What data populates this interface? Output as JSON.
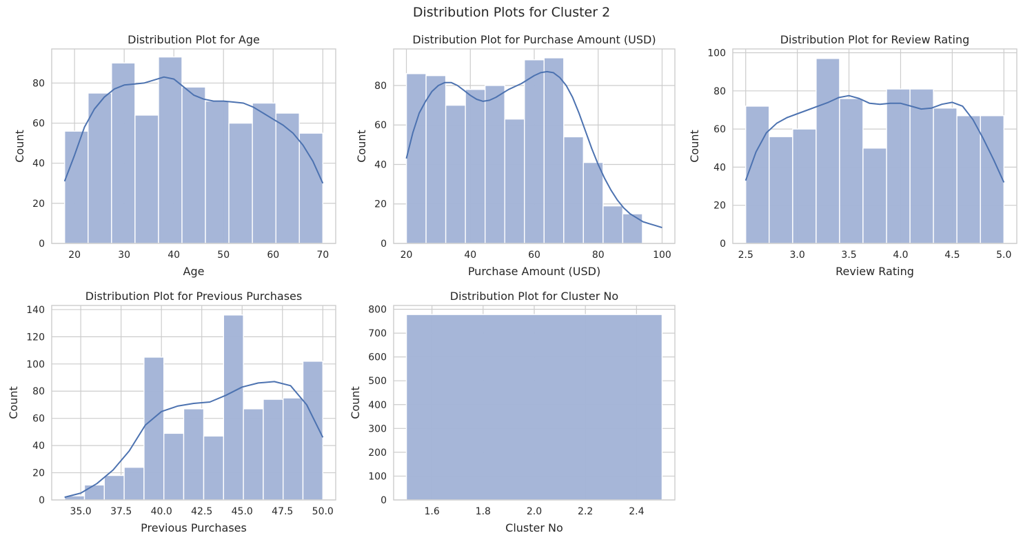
{
  "suptitle": "Distribution Plots for Cluster 2",
  "colors": {
    "bar_fill": "#a3b4d7",
    "bar_edge": "#ffffff",
    "kde_line": "#4c72b0",
    "grid": "#cccccc",
    "spine": "#cccccc",
    "background": "#ffffff"
  },
  "chart_data": [
    {
      "type": "bar",
      "title": "Distribution Plot for Age",
      "xlabel": "Age",
      "ylabel": "Count",
      "xlim": [
        15.4,
        72.6
      ],
      "ylim": [
        0,
        97
      ],
      "xticks": [
        20,
        30,
        40,
        50,
        60,
        70
      ],
      "yticks": [
        0,
        20,
        40,
        60,
        80
      ],
      "bin_edges": [
        18,
        22.73,
        27.45,
        32.18,
        36.91,
        41.64,
        46.36,
        51.09,
        55.82,
        60.55,
        65.27,
        70
      ],
      "counts": [
        56,
        75,
        90,
        64,
        93,
        78,
        71,
        60,
        70,
        65,
        55
      ],
      "kde": {
        "x": [
          18,
          20,
          22,
          24,
          26,
          28,
          30,
          32,
          34,
          36,
          38,
          40,
          42,
          44,
          46,
          48,
          50,
          52,
          54,
          56,
          58,
          60,
          62,
          64,
          66,
          68,
          70
        ],
        "y": [
          31,
          44,
          58,
          67,
          73,
          77,
          79,
          79.5,
          80,
          81.5,
          83,
          82,
          78,
          74,
          72,
          71,
          71,
          70.5,
          70,
          68,
          65,
          62,
          59,
          55,
          49,
          41,
          30
        ]
      }
    },
    {
      "type": "bar",
      "title": "Distribution Plot for Purchase Amount (USD)",
      "xlabel": "Purchase Amount (USD)",
      "ylabel": "Count",
      "xlim": [
        16,
        104
      ],
      "ylim": [
        0,
        98.5
      ],
      "xticks": [
        20,
        40,
        60,
        80,
        100
      ],
      "yticks": [
        0,
        20,
        40,
        60,
        80
      ],
      "bin_edges": [
        20,
        26.15,
        32.31,
        38.46,
        44.62,
        50.77,
        56.92,
        63.08,
        69.23,
        75.38,
        81.54,
        87.69,
        93.85,
        100
      ],
      "counts": [
        86,
        85,
        70,
        78,
        80,
        63,
        93,
        94,
        54,
        41,
        19,
        15,
        0
      ],
      "kde": {
        "x": [
          20,
          22,
          24,
          26,
          28,
          30,
          32,
          34,
          36,
          38,
          40,
          42,
          44,
          46,
          48,
          50,
          52,
          54,
          56,
          58,
          60,
          62,
          64,
          66,
          68,
          70,
          72,
          74,
          76,
          78,
          80,
          82,
          84,
          86,
          88,
          90,
          92,
          94,
          96,
          98,
          100
        ],
        "y": [
          43,
          56,
          66,
          72,
          77,
          80,
          81.5,
          81.5,
          80,
          77.5,
          75,
          73,
          72,
          72.5,
          74,
          76,
          78,
          79.5,
          81,
          83,
          85,
          86.5,
          87,
          86.5,
          84,
          80,
          74,
          66,
          57,
          48,
          40,
          33,
          27,
          22,
          18,
          15,
          13,
          11,
          10,
          9,
          8
        ]
      }
    },
    {
      "type": "bar",
      "title": "Distribution Plot for Review Rating",
      "xlabel": "Review Rating",
      "ylabel": "Count",
      "xlim": [
        2.375,
        5.125
      ],
      "ylim": [
        0,
        102
      ],
      "xticks": [
        2.5,
        3.0,
        3.5,
        4.0,
        4.5,
        5.0
      ],
      "xtick_labels": [
        "2.5",
        "3.0",
        "3.5",
        "4.0",
        "4.5",
        "5.0"
      ],
      "yticks": [
        0,
        20,
        40,
        60,
        80,
        100
      ],
      "bin_edges": [
        2.5,
        2.727,
        2.955,
        3.182,
        3.409,
        3.636,
        3.864,
        4.091,
        4.318,
        4.545,
        4.773,
        5.0
      ],
      "counts": [
        72,
        56,
        60,
        97,
        76,
        50,
        81,
        81,
        71,
        67,
        67
      ],
      "kde": {
        "x": [
          2.5,
          2.6,
          2.7,
          2.8,
          2.9,
          3.0,
          3.1,
          3.2,
          3.3,
          3.4,
          3.5,
          3.6,
          3.7,
          3.8,
          3.9,
          4.0,
          4.1,
          4.2,
          4.3,
          4.4,
          4.5,
          4.6,
          4.7,
          4.8,
          4.9,
          5.0
        ],
        "y": [
          33,
          48,
          58,
          63,
          66,
          68,
          70,
          72,
          74,
          76.5,
          77.5,
          76,
          73.5,
          73,
          73.5,
          73.5,
          72,
          70.5,
          71,
          73,
          74,
          72,
          65,
          55,
          44,
          32
        ]
      }
    },
    {
      "type": "bar",
      "title": "Distribution Plot for Previous Purchases",
      "xlabel": "Previous Purchases",
      "ylabel": "Count",
      "xlim": [
        33.2,
        50.8
      ],
      "ylim": [
        0,
        143
      ],
      "xticks": [
        35.0,
        37.5,
        40.0,
        42.5,
        45.0,
        47.5,
        50.0
      ],
      "xtick_labels": [
        "35.0",
        "37.5",
        "40.0",
        "42.5",
        "45.0",
        "47.5",
        "50.0"
      ],
      "yticks": [
        0,
        20,
        40,
        60,
        80,
        100,
        120,
        140
      ],
      "bin_edges": [
        34,
        35.23,
        36.46,
        37.69,
        38.92,
        40.15,
        41.38,
        42.62,
        43.85,
        45.08,
        46.31,
        47.54,
        48.77,
        50
      ],
      "counts": [
        3,
        11,
        18,
        24,
        105,
        49,
        67,
        47,
        136,
        67,
        74,
        75,
        102
      ],
      "kde": {
        "x": [
          34,
          35,
          36,
          37,
          38,
          39,
          40,
          41,
          42,
          43,
          44,
          45,
          46,
          47,
          48,
          49,
          50
        ],
        "y": [
          2,
          5,
          12,
          22,
          36,
          55,
          65,
          69,
          71,
          72,
          77,
          83,
          86,
          87,
          84,
          70,
          46
        ]
      }
    },
    {
      "type": "bar",
      "title": "Distribution Plot for Cluster No",
      "xlabel": "Cluster No",
      "ylabel": "Count",
      "xlim": [
        1.45,
        2.55
      ],
      "ylim": [
        0,
        816
      ],
      "xticks": [
        1.6,
        1.8,
        2.0,
        2.2,
        2.4
      ],
      "xtick_labels": [
        "1.6",
        "1.8",
        "2.0",
        "2.2",
        "2.4"
      ],
      "yticks": [
        0,
        100,
        200,
        300,
        400,
        500,
        600,
        700,
        800
      ],
      "bin_edges": [
        1.5,
        2.5
      ],
      "counts": [
        778
      ],
      "kde": null
    }
  ]
}
